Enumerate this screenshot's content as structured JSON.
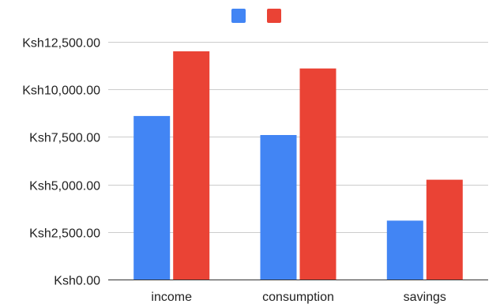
{
  "chart_data": {
    "type": "bar",
    "title": "",
    "xlabel": "",
    "ylabel": "",
    "categories": [
      "income",
      "consumption",
      "savings"
    ],
    "series": [
      {
        "values": [
          8600,
          7600,
          3100
        ],
        "color": "#4285f4"
      },
      {
        "values": [
          12000,
          11100,
          5250
        ],
        "color": "#ea4335"
      }
    ],
    "ylim": [
      0,
      12500
    ],
    "yticks": [
      0,
      2500,
      5000,
      7500,
      10000,
      12500
    ],
    "ytick_labels": [
      "Ksh0.00",
      "Ksh2,500.00",
      "Ksh5,000.00",
      "Ksh7,500.00",
      "Ksh10,000.00",
      "Ksh12,500.00"
    ],
    "grid": true,
    "legend": "top-center",
    "gridline_color": "#cccccc",
    "baseline_color": "#333333"
  }
}
